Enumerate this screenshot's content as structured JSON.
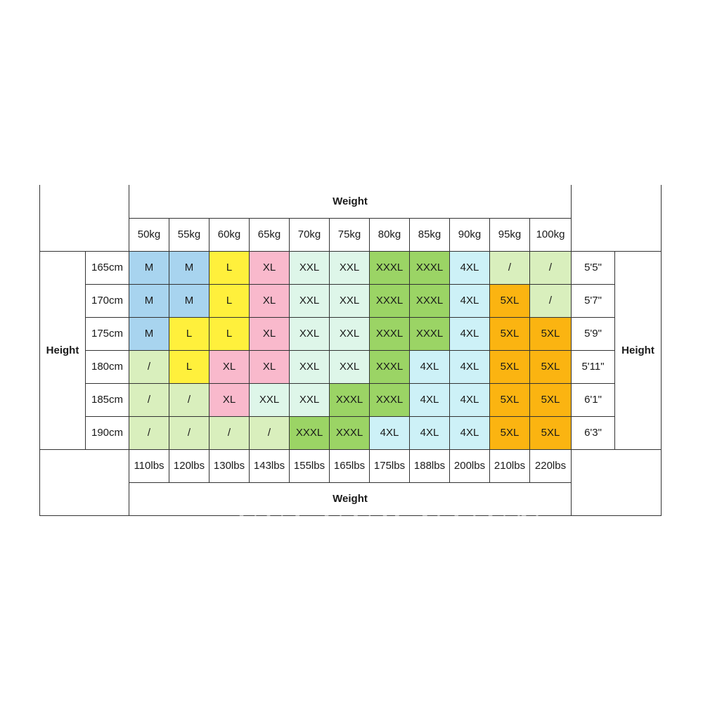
{
  "chart": {
    "weight_label_top": "Weight",
    "weight_label_bottom": "Weight",
    "height_label_left": "Height",
    "height_label_right": "Height",
    "kg_headers": [
      "50kg",
      "55kg",
      "60kg",
      "65kg",
      "70kg",
      "75kg",
      "80kg",
      "85kg",
      "90kg",
      "95kg",
      "100kg"
    ],
    "lbs_headers": [
      "110lbs",
      "120lbs",
      "130lbs",
      "143lbs",
      "155lbs",
      "165lbs",
      "175lbs",
      "188lbs",
      "200lbs",
      "210lbs",
      "220lbs"
    ],
    "rows": [
      {
        "cm": "165cm",
        "ft": "5'5\"",
        "cells": [
          "M",
          "M",
          "L",
          "XL",
          "XXL",
          "XXL",
          "XXXL",
          "XXXL",
          "4XL",
          "/",
          "/"
        ]
      },
      {
        "cm": "170cm",
        "ft": "5'7\"",
        "cells": [
          "M",
          "M",
          "L",
          "XL",
          "XXL",
          "XXL",
          "XXXL",
          "XXXL",
          "4XL",
          "5XL",
          "/"
        ]
      },
      {
        "cm": "175cm",
        "ft": "5'9\"",
        "cells": [
          "M",
          "L",
          "L",
          "XL",
          "XXL",
          "XXL",
          "XXXL",
          "XXXL",
          "4XL",
          "5XL",
          "5XL"
        ]
      },
      {
        "cm": "180cm",
        "ft": "5'11\"",
        "cells": [
          "/",
          "L",
          "XL",
          "XL",
          "XXL",
          "XXL",
          "XXXL",
          "4XL",
          "4XL",
          "5XL",
          "5XL"
        ]
      },
      {
        "cm": "185cm",
        "ft": "6'1\"",
        "cells": [
          "/",
          "/",
          "XL",
          "XXL",
          "XXL",
          "XXXL",
          "XXXL",
          "4XL",
          "4XL",
          "5XL",
          "5XL"
        ]
      },
      {
        "cm": "190cm",
        "ft": "6'3\"",
        "cells": [
          "/",
          "/",
          "/",
          "/",
          "XXXL",
          "XXXL",
          "4XL",
          "4XL",
          "4XL",
          "5XL",
          "5XL"
        ]
      }
    ]
  },
  "size_colors": {
    "M": "#a8d4ef",
    "L": "#fff03c",
    "XL": "#f9b9cc",
    "XXL": "#def6e9",
    "XXXL": "#9bd465",
    "4XL": "#cdf1f7",
    "5XL": "#fbb411",
    "/": "#d9efbd"
  },
  "watermark": "ESLEEP YUEN"
}
